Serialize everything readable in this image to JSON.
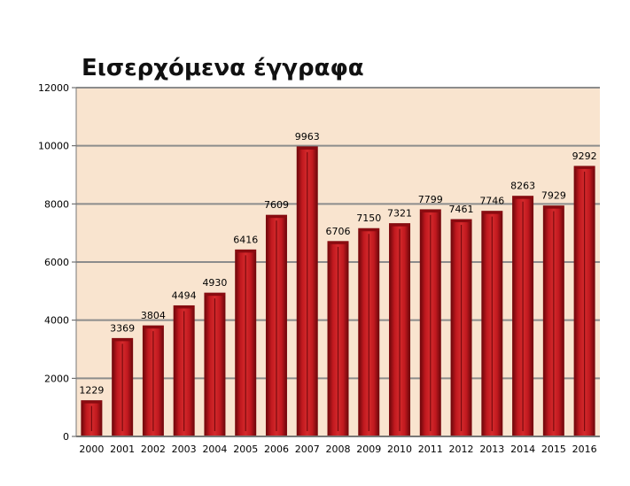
{
  "chart_data": {
    "type": "bar",
    "title": "Εισερχόμενα έγγραφα",
    "xlabel": "",
    "ylabel": "",
    "categories": [
      "2000",
      "2001",
      "2002",
      "2003",
      "2004",
      "2005",
      "2006",
      "2007",
      "2008",
      "2009",
      "2010",
      "2011",
      "2012",
      "2013",
      "2014",
      "2015",
      "2016"
    ],
    "values": [
      1229,
      3369,
      3804,
      4494,
      4930,
      6416,
      7609,
      9963,
      6706,
      7150,
      7321,
      7799,
      7461,
      7746,
      8263,
      7929,
      9292
    ],
    "ylim": [
      0,
      12000
    ],
    "yticks": [
      "0",
      "2000",
      "4000",
      "6000",
      "8000",
      "10000",
      "12000"
    ],
    "grid": true,
    "legend": "none",
    "colors": {
      "bar": "#c1191f",
      "bar_dark": "#7a0a0e",
      "plot_bg": "#f9e4cf",
      "grid": "#8c8c8c"
    }
  }
}
